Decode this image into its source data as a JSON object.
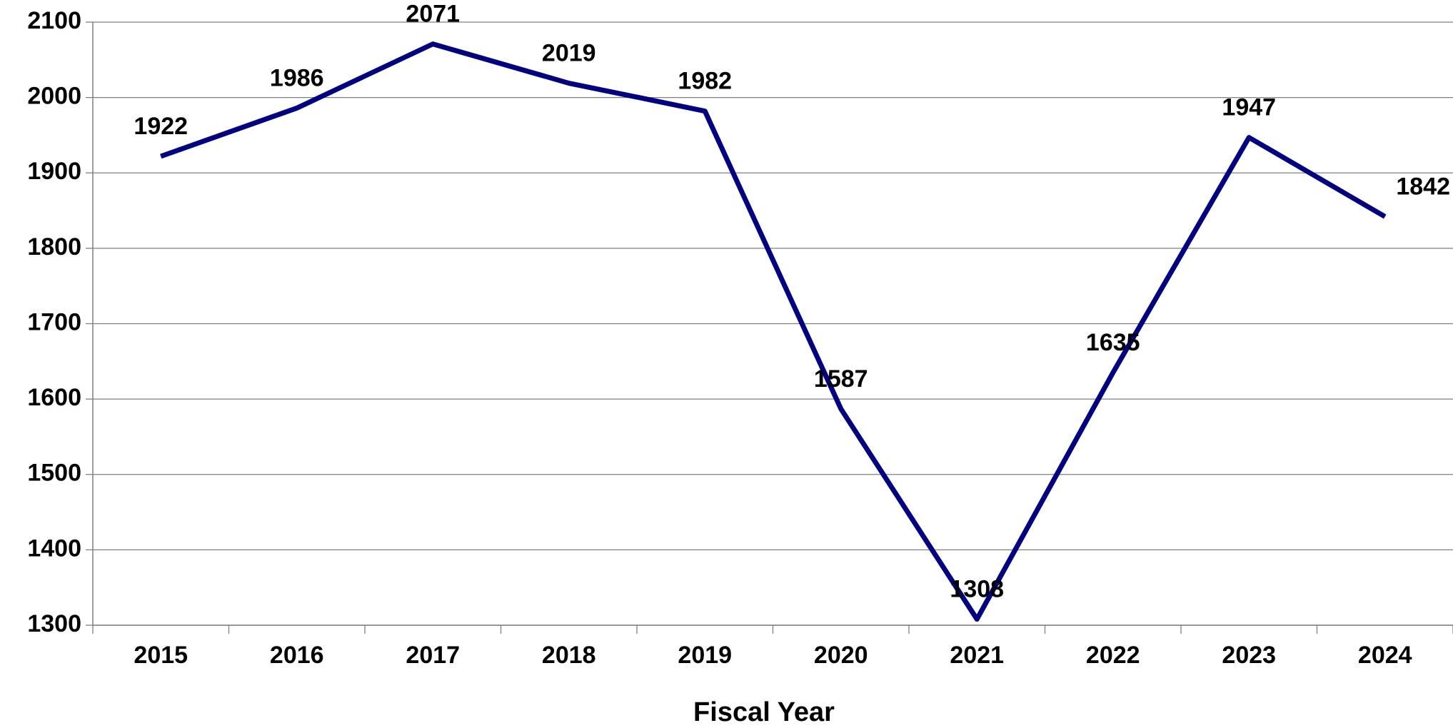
{
  "chart_data": {
    "type": "line",
    "x_label": "Fiscal Year",
    "categories": [
      "2015",
      "2016",
      "2017",
      "2018",
      "2019",
      "2020",
      "2021",
      "2022",
      "2023",
      "2024"
    ],
    "series": [
      {
        "color": "#000080",
        "values": [
          1922,
          1986,
          2071,
          2019,
          1982,
          1587,
          1308,
          1635,
          1947,
          1842
        ]
      }
    ],
    "ylim": [
      1300,
      2100
    ],
    "yticks": [
      1300,
      1400,
      1500,
      1600,
      1700,
      1800,
      1900,
      2000,
      2100
    ],
    "grid": true
  }
}
